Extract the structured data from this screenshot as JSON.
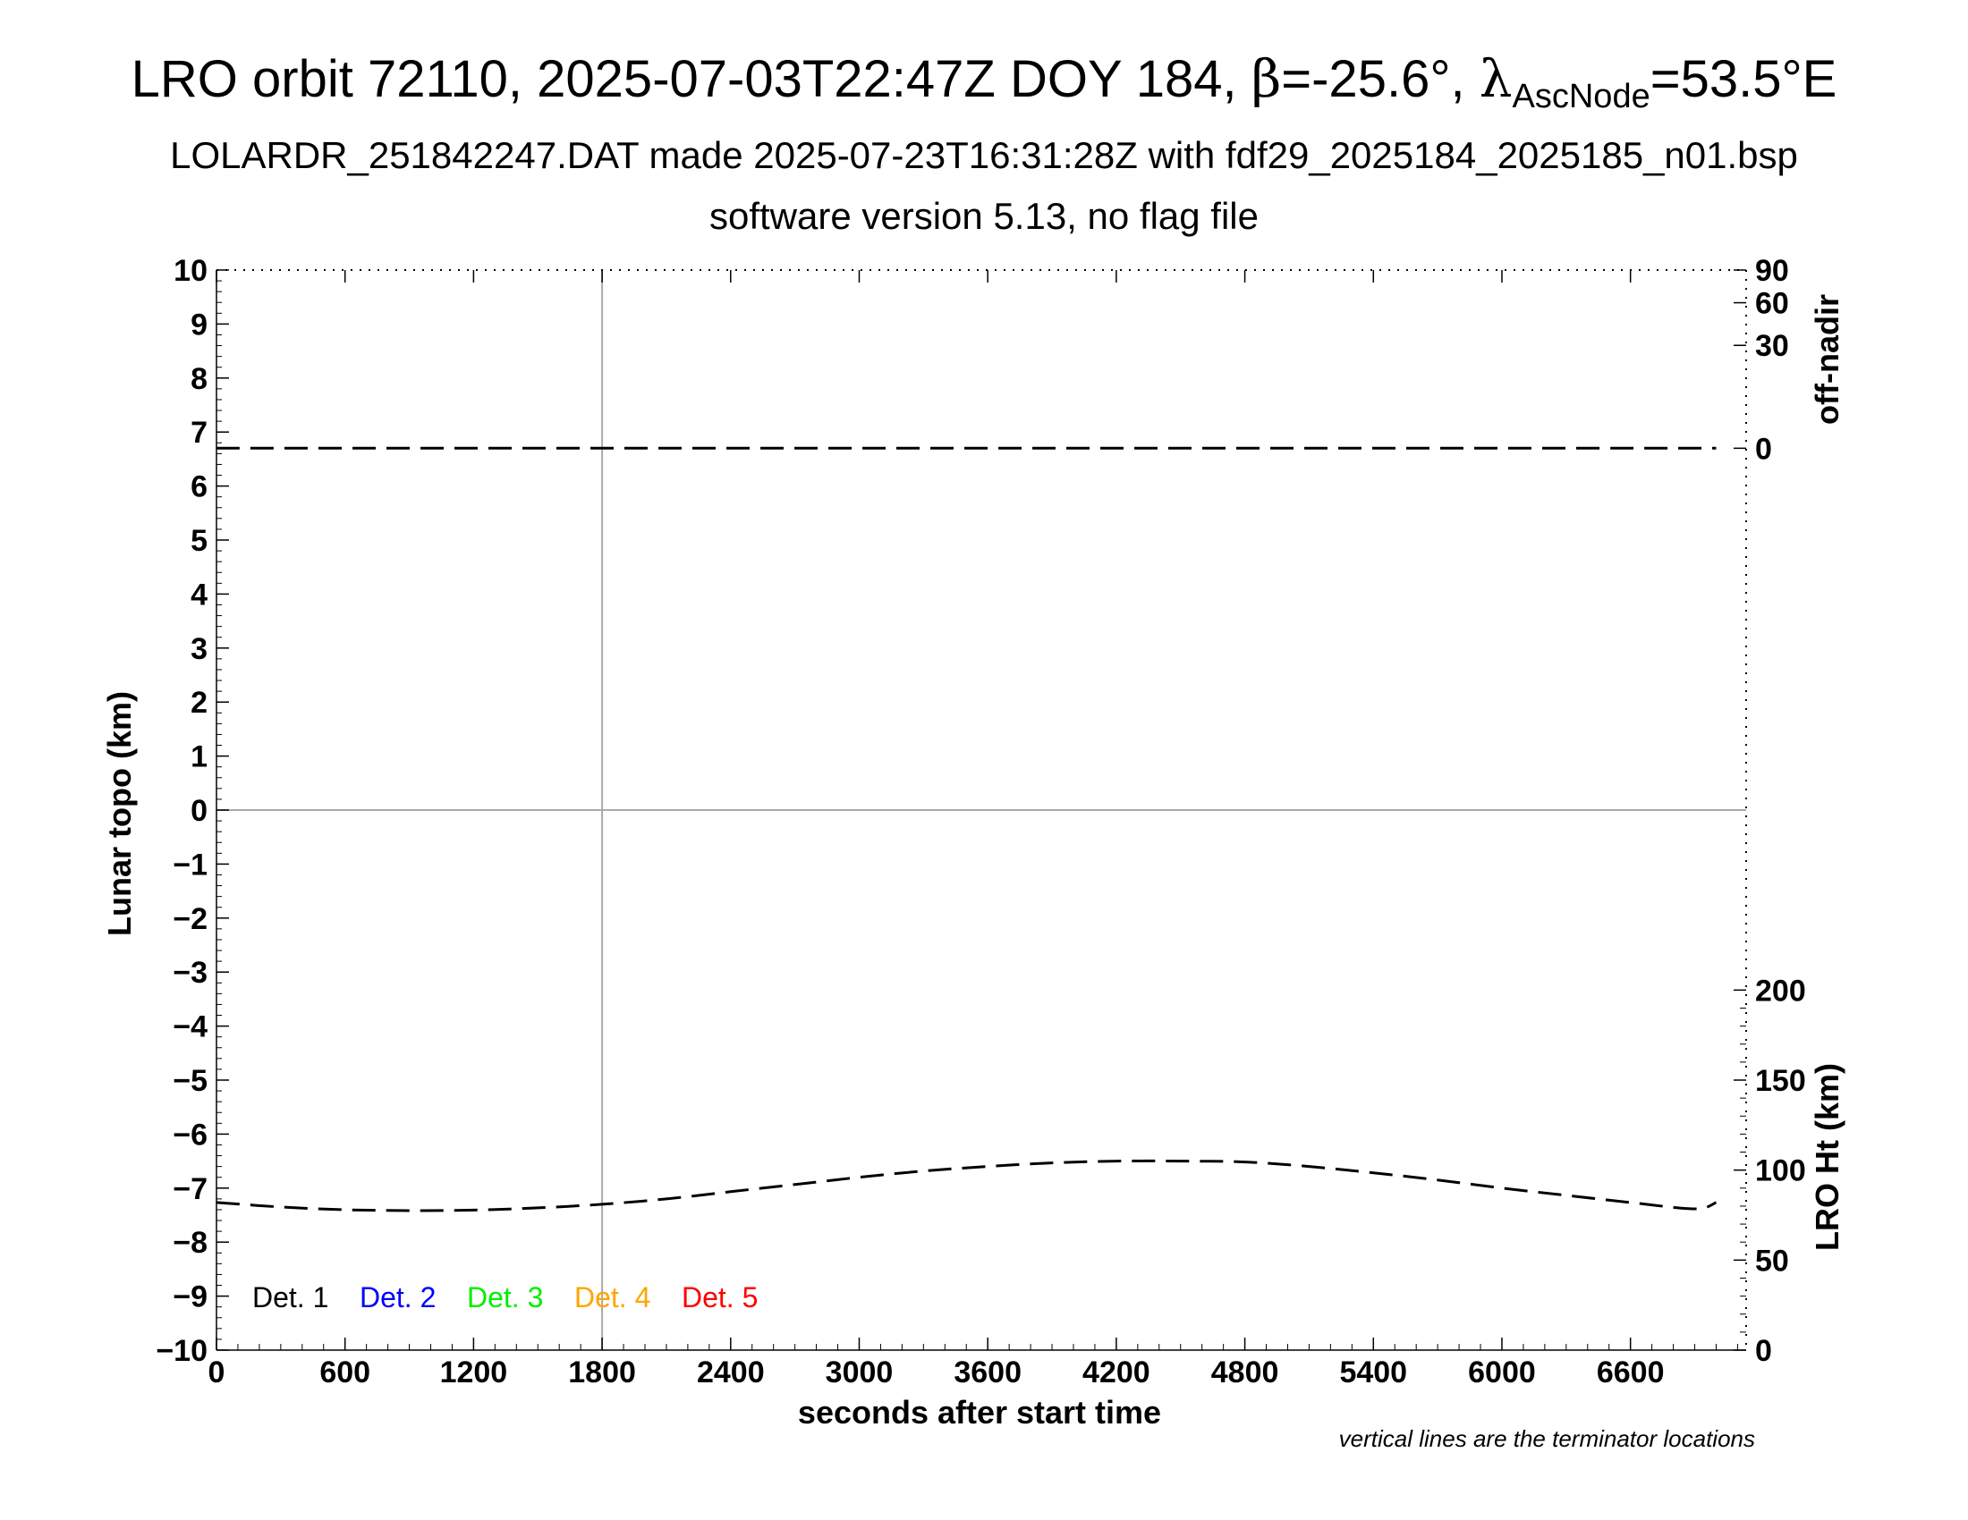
{
  "title": {
    "prefix": "LRO orbit 72110, 2025-07-03T22:47Z DOY 184, ",
    "beta_symbol": "β",
    "beta_value": "=-25.6°, ",
    "lambda_symbol": "λ",
    "lambda_sub": "AscNode",
    "lambda_value": "=53.5°E"
  },
  "subtitle": "LOLARDR_251842247.DAT made 2025-07-23T16:31:28Z with fdf29_2025184_2025185_n01.bsp",
  "subtitle2": "software version 5.13, no flag file",
  "footnote": "vertical lines are the terminator locations",
  "colors": {
    "det1": "#000000",
    "det2": "#0000ff",
    "det3": "#00ee00",
    "det4": "#ffa500",
    "det5": "#ff0000",
    "gridline": "#aaaaaa"
  },
  "chart_data": {
    "type": "line",
    "xlabel": "seconds after start time",
    "ylabel_left": "Lunar topo (km)",
    "ylabel_right_top": "off-nadir",
    "ylabel_right_bottom": "LRO Ht (km)",
    "xlim": [
      0,
      7140
    ],
    "ylim_left": [
      -10,
      10
    ],
    "x_ticks": [
      "0",
      "600",
      "1200",
      "1800",
      "2400",
      "3000",
      "3600",
      "4200",
      "4800",
      "5400",
      "6000",
      "6600"
    ],
    "x_tick_values": [
      0,
      600,
      1200,
      1800,
      2400,
      3000,
      3600,
      4200,
      4800,
      5400,
      6000,
      6600
    ],
    "y_left_ticks": [
      "10",
      "9",
      "8",
      "7",
      "6",
      "5",
      "4",
      "3",
      "2",
      "1",
      "0",
      "−1",
      "−2",
      "−3",
      "−4",
      "−5",
      "−6",
      "−7",
      "−8",
      "−9",
      "−10"
    ],
    "y_left_tick_values": [
      10,
      9,
      8,
      7,
      6,
      5,
      4,
      3,
      2,
      1,
      0,
      -1,
      -2,
      -3,
      -4,
      -5,
      -6,
      -7,
      -8,
      -9,
      -10
    ],
    "off_nadir_ticks": [
      "90",
      "60",
      "30",
      "0"
    ],
    "off_nadir_tick_values": [
      90,
      60,
      30,
      0
    ],
    "off_nadir_range_topo_km": [
      6.7,
      10
    ],
    "ht_ticks": [
      "200",
      "150",
      "100",
      "50",
      "0"
    ],
    "ht_tick_values": [
      200,
      150,
      100,
      50,
      0
    ],
    "ht_range_km": [
      0,
      300
    ],
    "ht_mapped_topo_range_km": [
      -10,
      0
    ],
    "terminator_x": [
      1800
    ],
    "grid": false,
    "legend": {
      "placement": "bottom-left",
      "entries": [
        "Det. 1",
        "Det. 2",
        "Det. 3",
        "Det. 4",
        "Det. 5"
      ]
    },
    "series": [
      {
        "style": "dashed",
        "color": "#000000",
        "axis": "off-nadir",
        "x": [
          0,
          1000,
          2000,
          3000,
          4000,
          5000,
          6000,
          7000
        ],
        "values": [
          0,
          0,
          0,
          0,
          0,
          0,
          0,
          0
        ]
      },
      {
        "style": "dashed",
        "color": "#000000",
        "axis": "LRO Ht (km)",
        "x": [
          0,
          300,
          600,
          900,
          1200,
          1500,
          1800,
          2100,
          2400,
          2700,
          3000,
          3300,
          3600,
          3900,
          4200,
          4500,
          4800,
          5100,
          5400,
          5700,
          6000,
          6300,
          6600,
          6900,
          7000
        ],
        "values": [
          82,
          79.5,
          78,
          77.5,
          77.8,
          79,
          81,
          84,
          88,
          92,
          96,
          99.5,
          102,
          104,
          105,
          105,
          104.5,
          102,
          98.5,
          94.5,
          90,
          86,
          82,
          78.5,
          82
        ]
      }
    ]
  }
}
